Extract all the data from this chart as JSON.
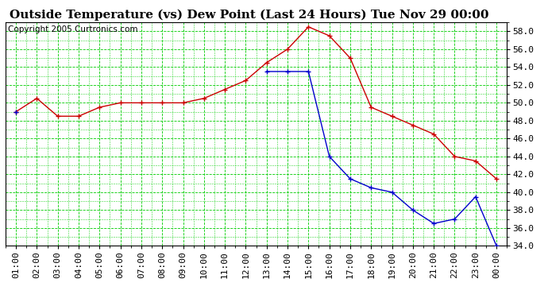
{
  "title": "Outside Temperature (vs) Dew Point (Last 24 Hours) Tue Nov 29 00:00",
  "copyright": "Copyright 2005 Curtronics.com",
  "x_labels": [
    "01:00",
    "02:00",
    "03:00",
    "04:00",
    "05:00",
    "06:00",
    "07:00",
    "08:00",
    "09:00",
    "10:00",
    "11:00",
    "12:00",
    "13:00",
    "14:00",
    "15:00",
    "16:00",
    "17:00",
    "18:00",
    "19:00",
    "20:00",
    "21:00",
    "22:00",
    "23:00",
    "00:00"
  ],
  "temp_data": [
    49.0,
    50.5,
    48.5,
    48.5,
    49.5,
    50.0,
    50.0,
    50.0,
    50.0,
    50.5,
    51.5,
    52.5,
    54.5,
    56.0,
    58.5,
    57.5,
    55.0,
    49.5,
    48.5,
    47.5,
    46.5,
    44.0,
    43.5,
    41.5
  ],
  "dew_seg1_x": [
    0
  ],
  "dew_seg1_y": [
    49.0
  ],
  "dew_seg2_x": [
    12,
    13,
    14,
    15,
    16,
    17,
    18,
    19,
    20,
    21,
    22,
    23
  ],
  "dew_seg2_y": [
    53.5,
    53.5,
    53.5,
    44.0,
    41.5,
    40.5,
    40.0,
    38.0,
    36.5,
    37.0,
    39.5,
    34.0
  ],
  "temp_color": "#cc0000",
  "dew_color": "#0000cc",
  "bg_color": "#ffffff",
  "grid_color": "#00cc00",
  "ylim": [
    34.0,
    59.0
  ],
  "yticks": [
    34.0,
    36.0,
    38.0,
    40.0,
    42.0,
    44.0,
    46.0,
    48.0,
    50.0,
    52.0,
    54.0,
    56.0,
    58.0
  ],
  "title_fontsize": 11,
  "tick_fontsize": 8,
  "copyright_fontsize": 7.5
}
